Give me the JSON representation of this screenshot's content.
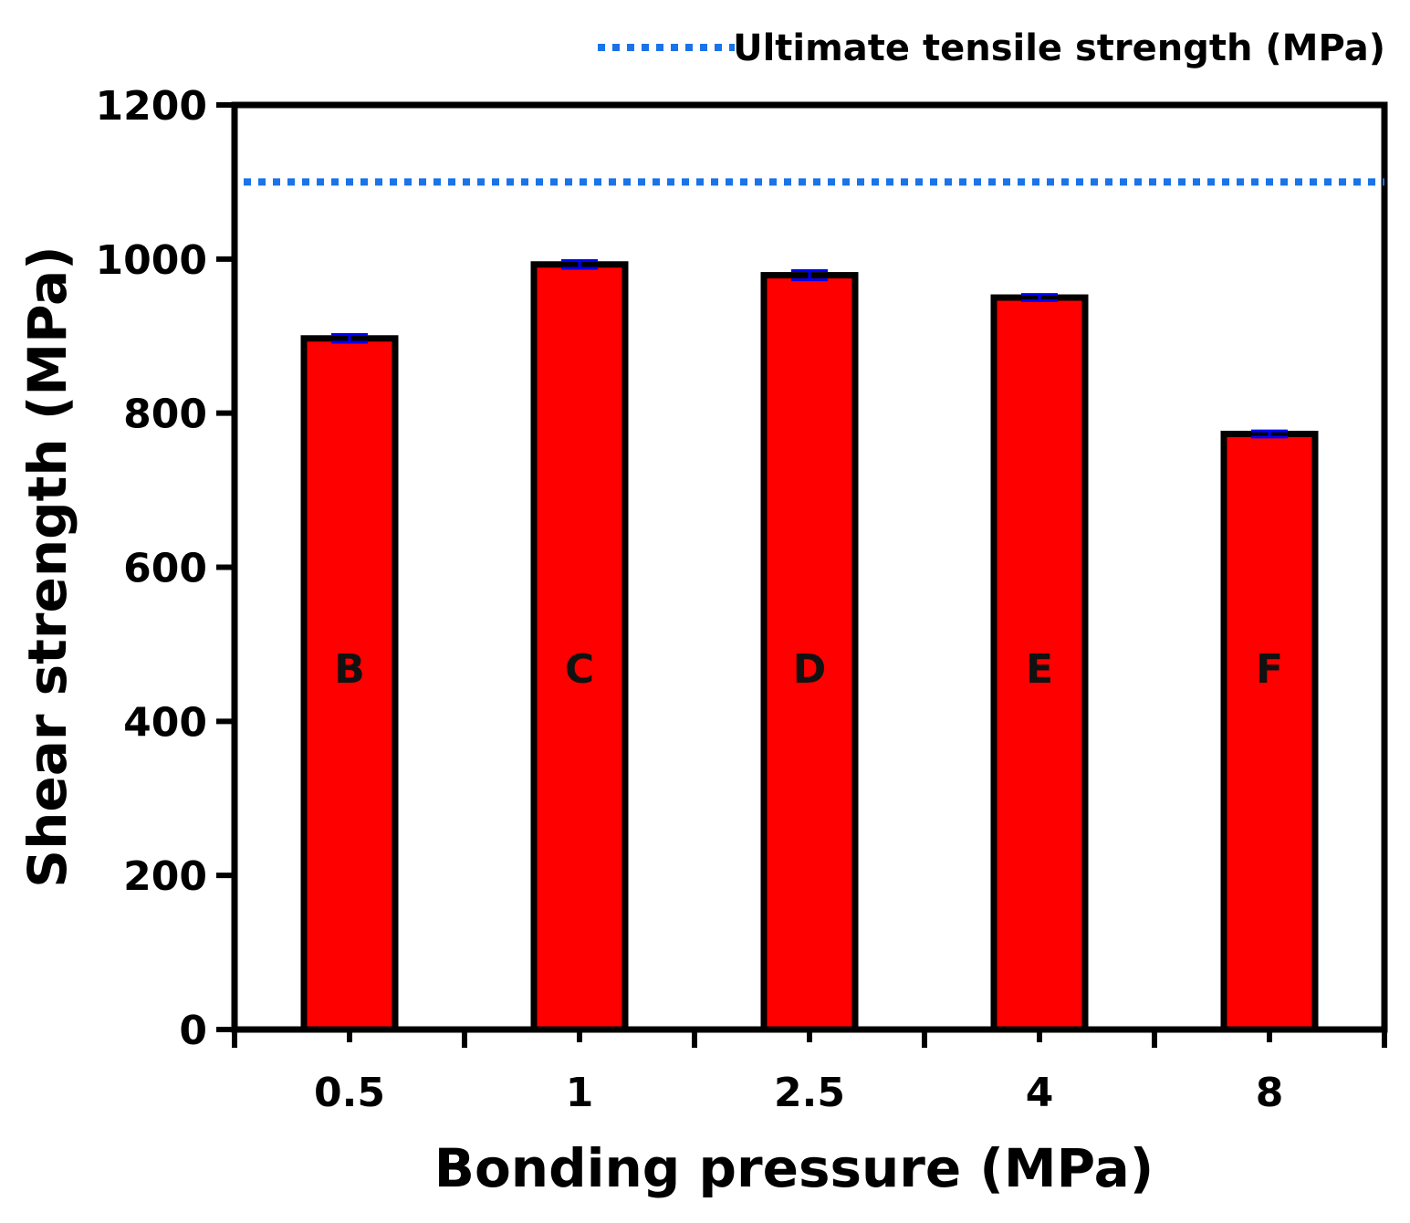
{
  "chart_data": {
    "type": "bar",
    "title": "",
    "xlabel": "Bonding pressure (MPa)",
    "ylabel": "Shear strength (MPa)",
    "categories": [
      "0.5",
      "1",
      "2.5",
      "4",
      "8"
    ],
    "values": [
      897,
      993,
      979,
      950,
      773
    ],
    "errors": [
      5,
      5,
      6,
      4,
      4
    ],
    "bar_labels": [
      "B",
      "C",
      "D",
      "E",
      "F"
    ],
    "ylim": [
      0,
      1200
    ],
    "yticks": [
      0,
      200,
      400,
      600,
      800,
      1000,
      1200
    ],
    "grid": false,
    "reference_line": {
      "label": "Ultimate tensile strength (MPa)",
      "value": 1100,
      "color": "#1a73e8",
      "style": "dotted"
    },
    "legend_position": "top-right",
    "colors": {
      "bar_fill": "#ff0000",
      "bar_edge": "#000000",
      "error_bar": "#0000ff"
    }
  }
}
